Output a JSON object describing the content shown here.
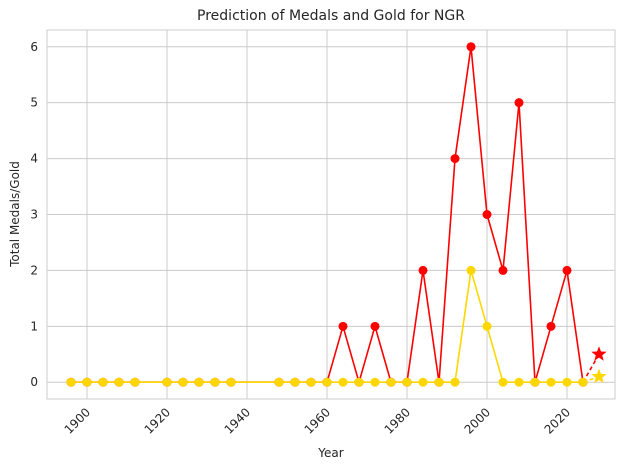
{
  "chart_data": {
    "type": "line",
    "title": "Prediction of Medals and Gold for NGR",
    "xlabel": "Year",
    "ylabel": "Total Medals/Gold",
    "xlim": [
      1890,
      2032
    ],
    "ylim": [
      -0.3,
      6.3
    ],
    "xticks": [
      1900,
      1920,
      1940,
      1960,
      1980,
      2000,
      2020
    ],
    "yticks": [
      0,
      1,
      2,
      3,
      4,
      5,
      6
    ],
    "grid": true,
    "x": [
      1896,
      1900,
      1904,
      1908,
      1912,
      1920,
      1924,
      1928,
      1932,
      1936,
      1948,
      1952,
      1956,
      1960,
      1964,
      1968,
      1972,
      1976,
      1980,
      1984,
      1988,
      1992,
      1996,
      2000,
      2004,
      2008,
      2012,
      2016,
      2020,
      2024
    ],
    "series": [
      {
        "role": "total",
        "color": "#ff0000",
        "values": [
          0,
          0,
          0,
          0,
          0,
          0,
          0,
          0,
          0,
          0,
          0,
          0,
          0,
          0,
          1,
          0,
          1,
          0,
          0,
          2,
          0,
          4,
          6,
          3,
          2,
          5,
          0,
          1,
          2,
          0
        ],
        "prediction": {
          "x": 2028,
          "value": 0.5
        }
      },
      {
        "role": "gold",
        "color": "#ffd700",
        "values": [
          0,
          0,
          0,
          0,
          0,
          0,
          0,
          0,
          0,
          0,
          0,
          0,
          0,
          0,
          0,
          0,
          0,
          0,
          0,
          0,
          0,
          0,
          2,
          1,
          0,
          0,
          0,
          0,
          0,
          0
        ],
        "prediction": {
          "x": 2028,
          "value": 0.1
        }
      }
    ]
  }
}
